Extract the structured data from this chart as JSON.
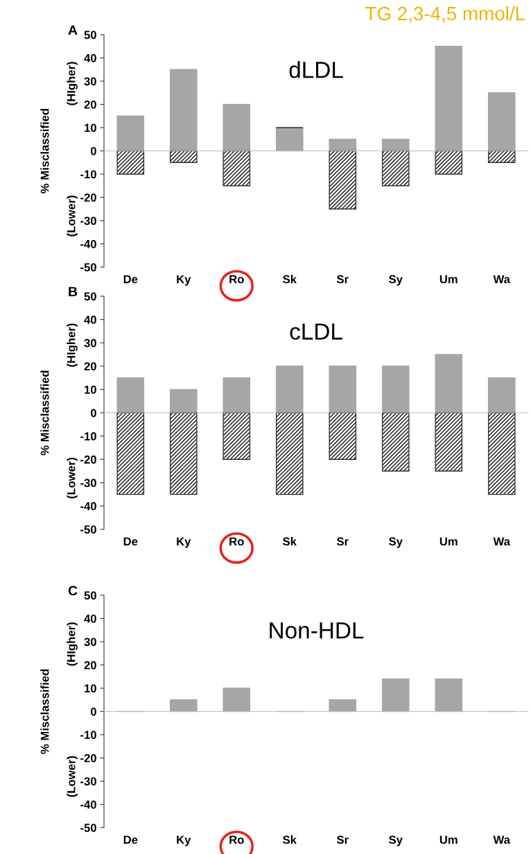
{
  "chart_data": [
    {
      "type": "bar",
      "title": "dLDL",
      "ylabel": "% Misclassified",
      "categories": [
        "De",
        "Ky",
        "Ro",
        "Sk",
        "Sr",
        "Sy",
        "Um",
        "Wa"
      ],
      "series": [
        {
          "color": "#a6a6a6",
          "values": [
            15,
            35,
            20,
            10,
            5,
            5,
            45,
            25
          ]
        },
        {
          "color": "#333333",
          "values": [
            -10,
            -5,
            -15,
            0,
            -25,
            -15,
            -10,
            -5
          ]
        }
      ],
      "ylim": [
        -50,
        50
      ],
      "yticks": [
        -50,
        -40,
        -30,
        -20,
        -10,
        0,
        10,
        20,
        30,
        40,
        50
      ],
      "stacked": true,
      "annotations": [
        "A",
        "(HIgher)",
        "(Lower)",
        "TG 2,3-4,5 mmol/L"
      ]
    },
    {
      "type": "bar",
      "title": "cLDL",
      "ylabel": "% Misclassified",
      "categories": [
        "De",
        "Ky",
        "Ro",
        "Sk",
        "Sr",
        "Sy",
        "Um",
        "Wa"
      ],
      "series": [
        {
          "color": "#a6a6a6",
          "values": [
            15,
            10,
            15,
            20,
            20,
            20,
            25,
            15
          ]
        },
        {
          "color": "#333333",
          "values": [
            -35,
            -35,
            -20,
            -35,
            -20,
            -25,
            -25,
            -35
          ]
        }
      ],
      "ylim": [
        -50,
        50
      ],
      "yticks": [
        -50,
        -40,
        -30,
        -20,
        -10,
        0,
        10,
        20,
        30,
        40,
        50
      ],
      "stacked": true,
      "annotations": [
        "B",
        "(HIgher)",
        "(Lower)"
      ]
    },
    {
      "type": "bar",
      "title": "Non-HDL",
      "ylabel": "% Misclassified",
      "categories": [
        "De",
        "Ky",
        "Ro",
        "Sk",
        "Sr",
        "Sy",
        "Um",
        "Wa"
      ],
      "series": [
        {
          "color": "#a6a6a6",
          "values": [
            0,
            5,
            10,
            0,
            5,
            14,
            14,
            0
          ]
        }
      ],
      "ylim": [
        -50,
        50
      ],
      "yticks": [
        -50,
        -40,
        -30,
        -20,
        -10,
        0,
        10,
        20,
        30,
        40,
        50
      ],
      "annotations": [
        "C",
        "(HIgher)",
        "(Lower)"
      ]
    }
  ]
}
